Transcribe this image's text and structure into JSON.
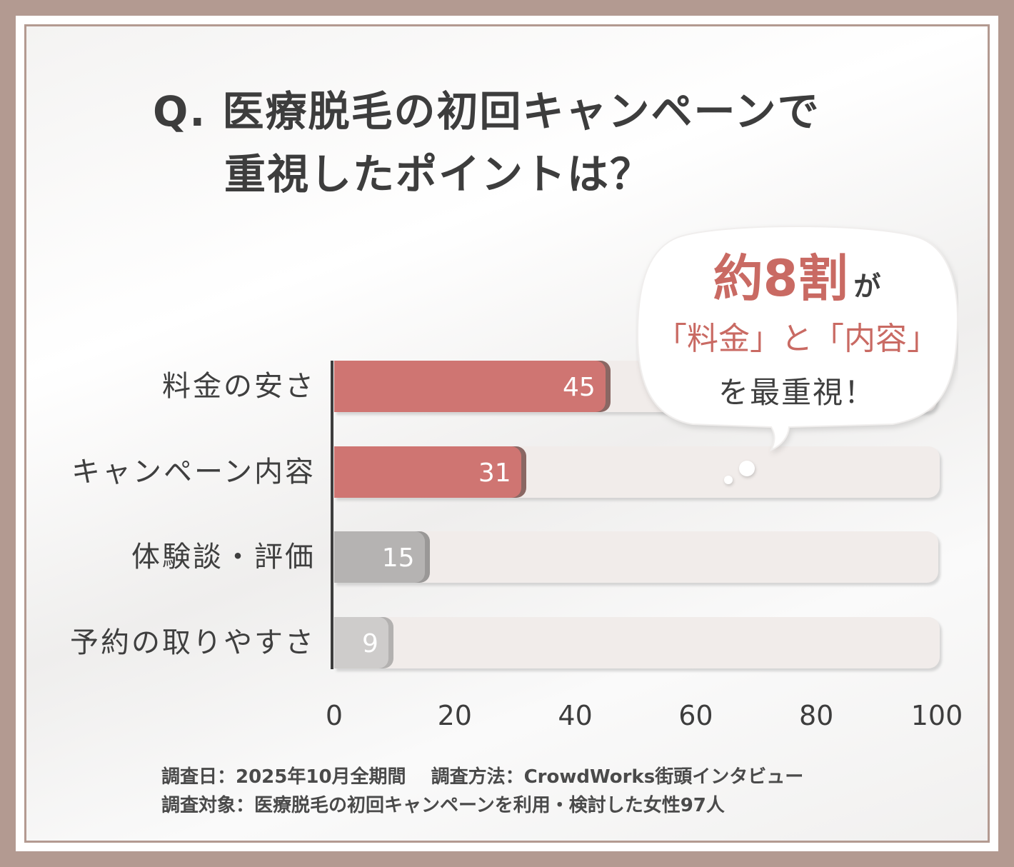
{
  "title": {
    "line1": "Q. 医療脱毛の初回キャンペーンで",
    "line2": "重視したポイントは？"
  },
  "callout": {
    "highlight": "約8割",
    "particle": "が",
    "line2": "「料金」と「内容」",
    "line3": "を最重視！"
  },
  "chart_data": {
    "type": "bar",
    "orientation": "horizontal",
    "categories": [
      "料金の安さ",
      "キャンペーン内容",
      "体験談・評価",
      "予約の取りやすさ"
    ],
    "values": [
      45,
      31,
      15,
      9
    ],
    "xlim": [
      0,
      100
    ],
    "xticks": [
      "0",
      "20",
      "40",
      "60",
      "80",
      "100"
    ],
    "bar_colors": [
      "#cf7572",
      "#cf7572",
      "#b5b3b2",
      "#cecccb"
    ],
    "bar_shadow_colors": [
      "#8a6763",
      "#8a6763",
      "#9a9897",
      "#b3b1b0"
    ],
    "track_color": "#f1ecea",
    "grid": false,
    "legend": "none"
  },
  "footer": {
    "line1": "調査日：2025年10月全期間　 調査方法：CrowdWorks街頭インタビュー",
    "line2": "調査対象：医療脱毛の初回キャンペーンを利用・検討した女性97人"
  },
  "colors": {
    "frame": "#b39a91",
    "accent": "#c96a63",
    "text": "#3d3d3d"
  }
}
